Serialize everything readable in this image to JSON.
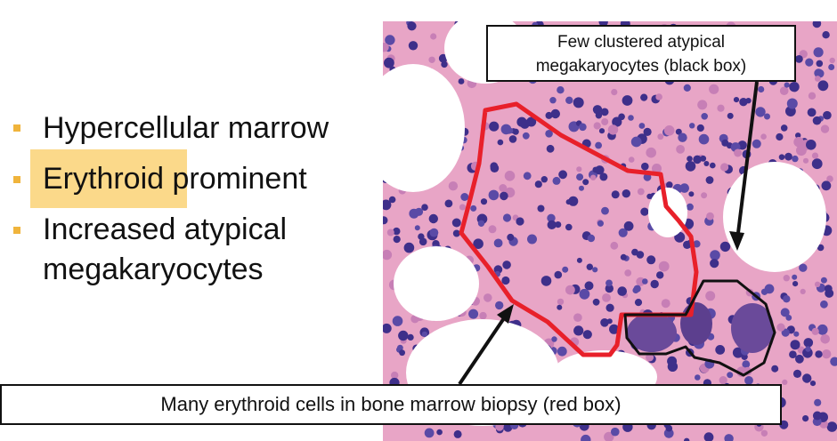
{
  "bullets": [
    {
      "text": "Hypercellular marrow",
      "highlight": false
    },
    {
      "text": "Erythroid prominent",
      "highlight": true
    },
    {
      "text": "Increased atypical",
      "highlight": false
    },
    {
      "text": "megakaryocytes",
      "highlight": false
    }
  ],
  "callouts": {
    "top_line1": "Few clustered atypical",
    "top_line2": "megakaryocytes (black box)",
    "bottom": "Many erythroid cells in bone marrow biopsy (red box)"
  },
  "colors": {
    "bullet_marker": "#f0b43c",
    "highlight": "#fbd98a",
    "tissue_base": "#e8a5c6",
    "nucleus": "#4a3a9c",
    "red_outline": "#e8202a",
    "black_outline": "#111111",
    "fat_space": "#ffffff"
  }
}
